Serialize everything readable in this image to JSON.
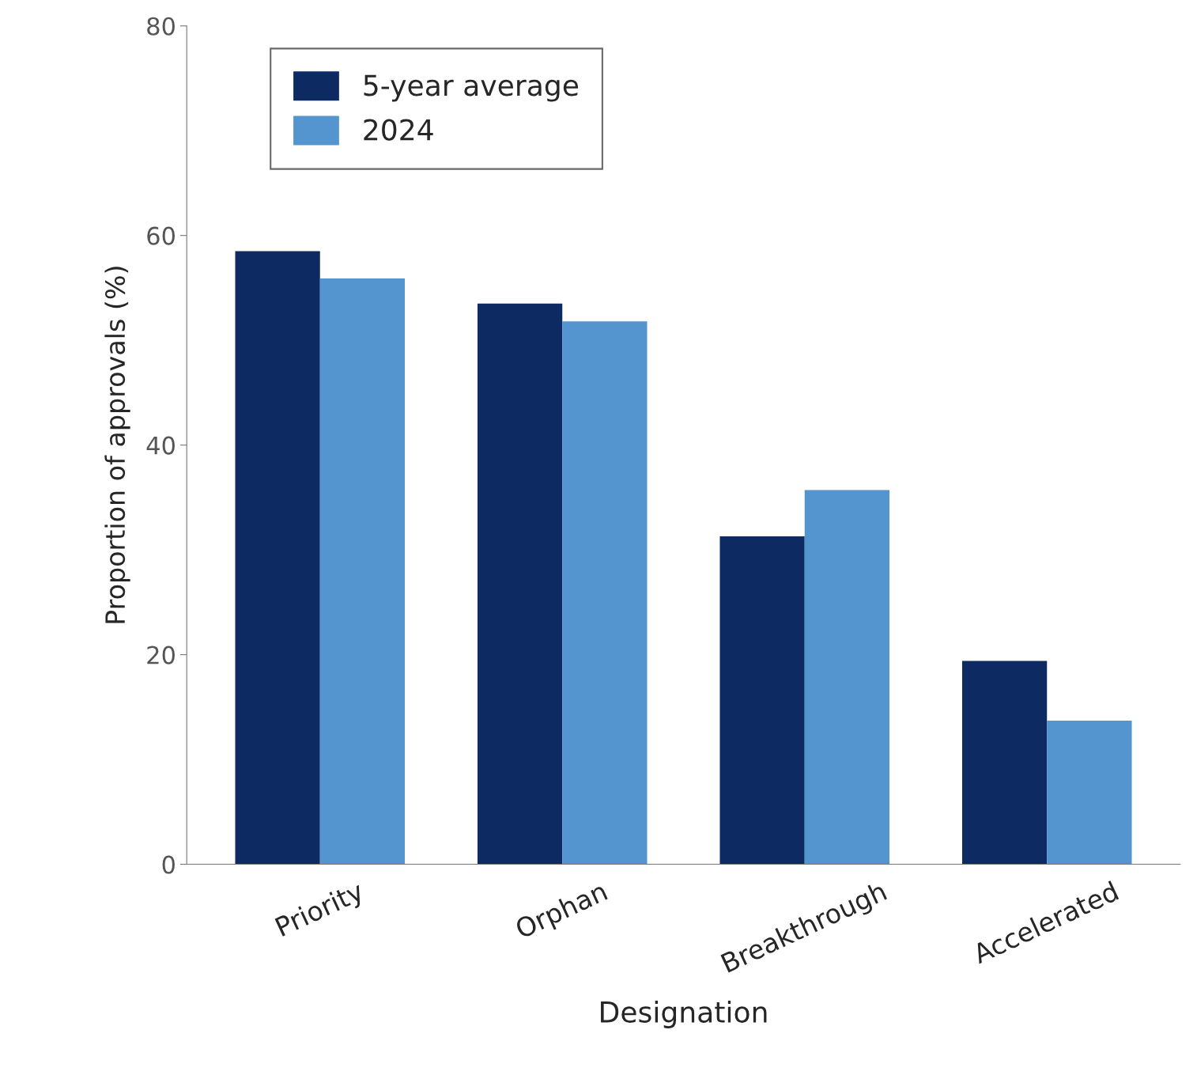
{
  "chart_data": {
    "type": "bar",
    "xlabel": "Designation",
    "ylabel": "Proportion of approvals (%)",
    "categories": [
      "Priority",
      "Orphan",
      "Breakthrough",
      "Accelerated"
    ],
    "series": [
      {
        "name": "5-year average",
        "color": "#0d2a63",
        "values": [
          58.5,
          53.5,
          31.3,
          19.4
        ]
      },
      {
        "name": "2024",
        "color": "#5495d0",
        "values": [
          55.9,
          51.8,
          35.7,
          13.7
        ]
      }
    ],
    "ylim": [
      0,
      80
    ],
    "yticks": [
      0,
      20,
      40,
      60,
      80
    ],
    "grid": false,
    "legend": "top left"
  }
}
